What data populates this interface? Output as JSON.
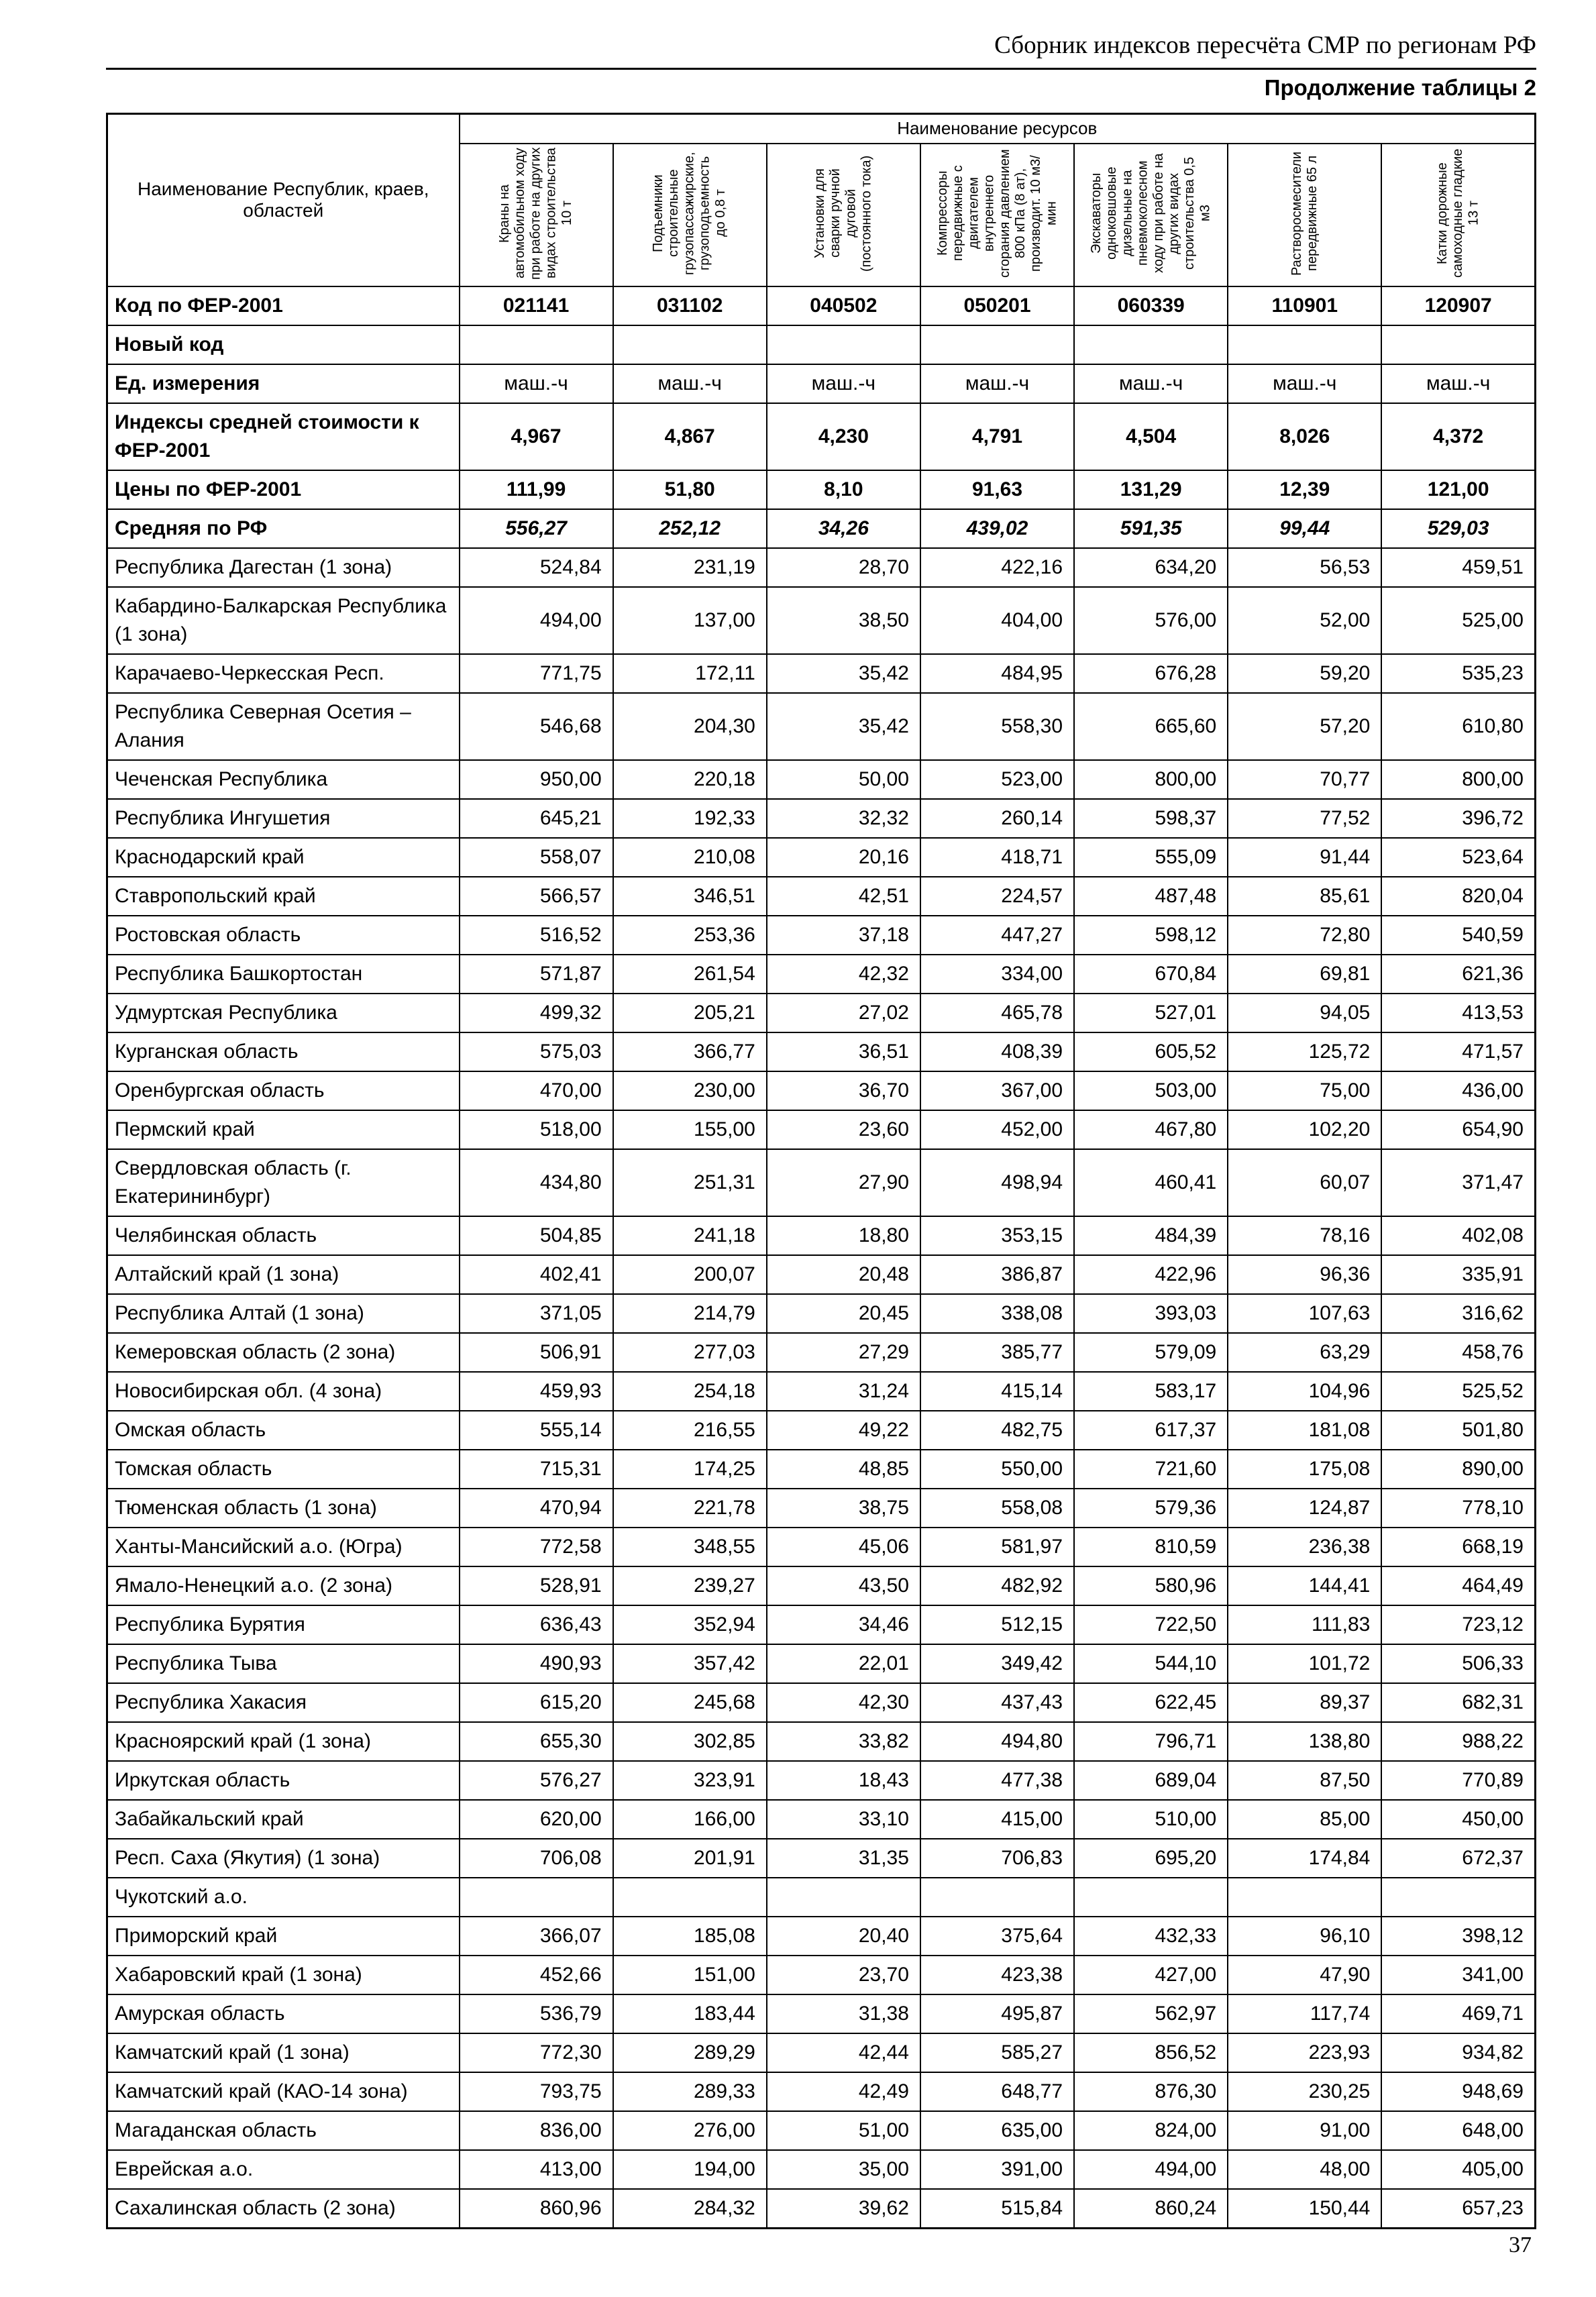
{
  "page": {
    "running_head": "Сборник индексов пересчёта СМР по регионам РФ",
    "continuation": "Продолжение таблицы 2",
    "page_number": "37"
  },
  "table": {
    "resources_group_header": "Наименование ресурсов",
    "region_header": "Наименование Республик, краев, областей",
    "columns": [
      "Краны на автомобильном ходу при работе на других видах строительства 10 т",
      "Подъемники строительные грузопассажирские, грузоподъемность до 0,8 т",
      "Установки для сварки ручной дуговой (постоянного тока)",
      "Компрессоры передвижные с двигателем внутреннего сгорания давлением 800 кПа (8 ат), производит. 10 м3/мин",
      "Экскаваторы одноковшовые дизельные на пневмоколесном ходу при работе на других видах строительства 0,5 м3",
      "Растворосмесители передвижные 65 л",
      "Катки дорожные самоходные гладкие 13 т"
    ],
    "meta_rows": [
      {
        "kind": "code",
        "label": "Код по ФЕР-2001",
        "values": [
          "021141",
          "031102",
          "040502",
          "050201",
          "060339",
          "110901",
          "120907"
        ]
      },
      {
        "kind": "newcode",
        "label": "Новый код",
        "values": [
          "",
          "",
          "",
          "",
          "",
          "",
          ""
        ]
      },
      {
        "kind": "units",
        "label": "Ед. измерения",
        "values": [
          "маш.-ч",
          "маш.-ч",
          "маш.-ч",
          "маш.-ч",
          "маш.-ч",
          "маш.-ч",
          "маш.-ч"
        ]
      },
      {
        "kind": "index",
        "label": "Индексы средней стоимости к ФЕР-2001",
        "values": [
          "4,967",
          "4,867",
          "4,230",
          "4,791",
          "4,504",
          "8,026",
          "4,372"
        ]
      },
      {
        "kind": "price",
        "label": "Цены по ФЕР-2001",
        "values": [
          "111,99",
          "51,80",
          "8,10",
          "91,63",
          "131,29",
          "12,39",
          "121,00"
        ]
      },
      {
        "kind": "avg",
        "label": "Средняя по РФ",
        "values": [
          "556,27",
          "252,12",
          "34,26",
          "439,02",
          "591,35",
          "99,44",
          "529,03"
        ]
      }
    ],
    "region_rows": [
      {
        "label": "Республика Дагестан (1 зона)",
        "values": [
          "524,84",
          "231,19",
          "28,70",
          "422,16",
          "634,20",
          "56,53",
          "459,51"
        ]
      },
      {
        "label": "Кабардино-Балкарская Республика (1 зона)",
        "values": [
          "494,00",
          "137,00",
          "38,50",
          "404,00",
          "576,00",
          "52,00",
          "525,00"
        ]
      },
      {
        "label": "Карачаево-Черкесская Респ.",
        "values": [
          "771,75",
          "172,11",
          "35,42",
          "484,95",
          "676,28",
          "59,20",
          "535,23"
        ]
      },
      {
        "label": "Республика Северная Осетия – Алания",
        "values": [
          "546,68",
          "204,30",
          "35,42",
          "558,30",
          "665,60",
          "57,20",
          "610,80"
        ]
      },
      {
        "label": "Чеченская Республика",
        "values": [
          "950,00",
          "220,18",
          "50,00",
          "523,00",
          "800,00",
          "70,77",
          "800,00"
        ]
      },
      {
        "label": "Республика Ингушетия",
        "values": [
          "645,21",
          "192,33",
          "32,32",
          "260,14",
          "598,37",
          "77,52",
          "396,72"
        ]
      },
      {
        "label": "Краснодарский край",
        "values": [
          "558,07",
          "210,08",
          "20,16",
          "418,71",
          "555,09",
          "91,44",
          "523,64"
        ]
      },
      {
        "label": "Ставропольский край",
        "values": [
          "566,57",
          "346,51",
          "42,51",
          "224,57",
          "487,48",
          "85,61",
          "820,04"
        ]
      },
      {
        "label": "Ростовская область",
        "values": [
          "516,52",
          "253,36",
          "37,18",
          "447,27",
          "598,12",
          "72,80",
          "540,59"
        ]
      },
      {
        "label": "Республика Башкортостан",
        "values": [
          "571,87",
          "261,54",
          "42,32",
          "334,00",
          "670,84",
          "69,81",
          "621,36"
        ]
      },
      {
        "label": "Удмуртская Республика",
        "values": [
          "499,32",
          "205,21",
          "27,02",
          "465,78",
          "527,01",
          "94,05",
          "413,53"
        ]
      },
      {
        "label": "Курганская область",
        "values": [
          "575,03",
          "366,77",
          "36,51",
          "408,39",
          "605,52",
          "125,72",
          "471,57"
        ]
      },
      {
        "label": "Оренбургская область",
        "values": [
          "470,00",
          "230,00",
          "36,70",
          "367,00",
          "503,00",
          "75,00",
          "436,00"
        ]
      },
      {
        "label": "Пермский край",
        "values": [
          "518,00",
          "155,00",
          "23,60",
          "452,00",
          "467,80",
          "102,20",
          "654,90"
        ]
      },
      {
        "label": "Свердловская область (г. Екатерининбург)",
        "values": [
          "434,80",
          "251,31",
          "27,90",
          "498,94",
          "460,41",
          "60,07",
          "371,47"
        ]
      },
      {
        "label": "Челябинская область",
        "values": [
          "504,85",
          "241,18",
          "18,80",
          "353,15",
          "484,39",
          "78,16",
          "402,08"
        ]
      },
      {
        "label": "Алтайский край (1 зона)",
        "values": [
          "402,41",
          "200,07",
          "20,48",
          "386,87",
          "422,96",
          "96,36",
          "335,91"
        ]
      },
      {
        "label": "Республика Алтай (1 зона)",
        "values": [
          "371,05",
          "214,79",
          "20,45",
          "338,08",
          "393,03",
          "107,63",
          "316,62"
        ]
      },
      {
        "label": "Кемеровская область (2 зона)",
        "values": [
          "506,91",
          "277,03",
          "27,29",
          "385,77",
          "579,09",
          "63,29",
          "458,76"
        ]
      },
      {
        "label": "Новосибирская обл. (4 зона)",
        "values": [
          "459,93",
          "254,18",
          "31,24",
          "415,14",
          "583,17",
          "104,96",
          "525,52"
        ]
      },
      {
        "label": "Омская область",
        "values": [
          "555,14",
          "216,55",
          "49,22",
          "482,75",
          "617,37",
          "181,08",
          "501,80"
        ]
      },
      {
        "label": "Томская область",
        "values": [
          "715,31",
          "174,25",
          "48,85",
          "550,00",
          "721,60",
          "175,08",
          "890,00"
        ]
      },
      {
        "label": "Тюменская область (1 зона)",
        "values": [
          "470,94",
          "221,78",
          "38,75",
          "558,08",
          "579,36",
          "124,87",
          "778,10"
        ]
      },
      {
        "label": "Ханты-Мансийский а.о. (Югра)",
        "values": [
          "772,58",
          "348,55",
          "45,06",
          "581,97",
          "810,59",
          "236,38",
          "668,19"
        ]
      },
      {
        "label": "Ямало-Ненецкий а.о. (2 зона)",
        "values": [
          "528,91",
          "239,27",
          "43,50",
          "482,92",
          "580,96",
          "144,41",
          "464,49"
        ]
      },
      {
        "label": "Республика Бурятия",
        "values": [
          "636,43",
          "352,94",
          "34,46",
          "512,15",
          "722,50",
          "111,83",
          "723,12"
        ]
      },
      {
        "label": "Республика Тыва",
        "values": [
          "490,93",
          "357,42",
          "22,01",
          "349,42",
          "544,10",
          "101,72",
          "506,33"
        ]
      },
      {
        "label": "Республика Хакасия",
        "values": [
          "615,20",
          "245,68",
          "42,30",
          "437,43",
          "622,45",
          "89,37",
          "682,31"
        ]
      },
      {
        "label": "Красноярский край (1 зона)",
        "values": [
          "655,30",
          "302,85",
          "33,82",
          "494,80",
          "796,71",
          "138,80",
          "988,22"
        ]
      },
      {
        "label": "Иркутская область",
        "values": [
          "576,27",
          "323,91",
          "18,43",
          "477,38",
          "689,04",
          "87,50",
          "770,89"
        ]
      },
      {
        "label": "Забайкальский край",
        "values": [
          "620,00",
          "166,00",
          "33,10",
          "415,00",
          "510,00",
          "85,00",
          "450,00"
        ]
      },
      {
        "label": "Респ. Саха (Якутия) (1 зона)",
        "values": [
          "706,08",
          "201,91",
          "31,35",
          "706,83",
          "695,20",
          "174,84",
          "672,37"
        ]
      },
      {
        "label": "Чукотский а.о.",
        "values": [
          "",
          "",
          "",
          "",
          "",
          "",
          ""
        ]
      },
      {
        "label": "Приморский край",
        "values": [
          "366,07",
          "185,08",
          "20,40",
          "375,64",
          "432,33",
          "96,10",
          "398,12"
        ]
      },
      {
        "label": "Хабаровский край (1 зона)",
        "values": [
          "452,66",
          "151,00",
          "23,70",
          "423,38",
          "427,00",
          "47,90",
          "341,00"
        ]
      },
      {
        "label": "Амурская область",
        "values": [
          "536,79",
          "183,44",
          "31,38",
          "495,87",
          "562,97",
          "117,74",
          "469,71"
        ]
      },
      {
        "label": "Камчатский край (1 зона)",
        "values": [
          "772,30",
          "289,29",
          "42,44",
          "585,27",
          "856,52",
          "223,93",
          "934,82"
        ]
      },
      {
        "label": "Камчатский край (КАО-14 зона)",
        "values": [
          "793,75",
          "289,33",
          "42,49",
          "648,77",
          "876,30",
          "230,25",
          "948,69"
        ]
      },
      {
        "label": "Магаданская область",
        "values": [
          "836,00",
          "276,00",
          "51,00",
          "635,00",
          "824,00",
          "91,00",
          "648,00"
        ]
      },
      {
        "label": "Еврейская а.о.",
        "values": [
          "413,00",
          "194,00",
          "35,00",
          "391,00",
          "494,00",
          "48,00",
          "405,00"
        ]
      },
      {
        "label": "Сахалинская область (2 зона)",
        "values": [
          "860,96",
          "284,32",
          "39,62",
          "515,84",
          "860,24",
          "150,44",
          "657,23"
        ]
      }
    ]
  }
}
